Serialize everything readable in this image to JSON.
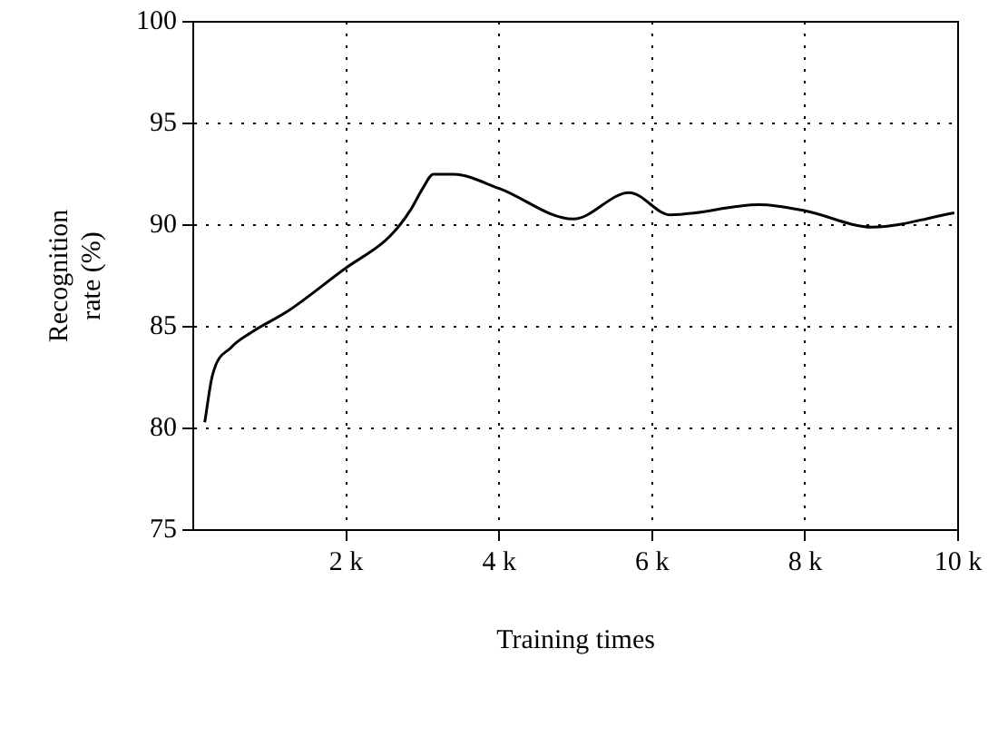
{
  "chart_data": {
    "type": "line",
    "xlabel": "Training times",
    "ylabel": "Recognition rate (%)",
    "series": [
      {
        "color": "#000000",
        "x": [
          150,
          250,
          500,
          750,
          1250,
          2000,
          2500,
          2700,
          2850,
          3000,
          3140,
          3400,
          4000,
          4970,
          5700,
          6240,
          7400,
          8000,
          8880,
          9950
        ],
        "values": [
          80.3,
          82.6,
          84.0,
          84.7,
          85.8,
          87.9,
          89.2,
          90.0,
          90.8,
          91.8,
          92.5,
          92.5,
          91.8,
          90.3,
          91.6,
          90.5,
          91.0,
          90.7,
          89.9,
          90.6
        ]
      }
    ],
    "xlim": [
      0,
      10000
    ],
    "xticks": [
      {
        "value": 2000,
        "label": "2 k"
      },
      {
        "value": 4000,
        "label": "4 k"
      },
      {
        "value": 6000,
        "label": "6 k"
      },
      {
        "value": 8000,
        "label": "8 k"
      },
      {
        "value": 10000,
        "label": "10 k"
      }
    ],
    "ylim": [
      75,
      100
    ],
    "yticks": [
      75,
      80,
      85,
      90,
      95,
      100
    ],
    "grid": true,
    "legend": false,
    "marker": "none",
    "line_style": "solid"
  }
}
